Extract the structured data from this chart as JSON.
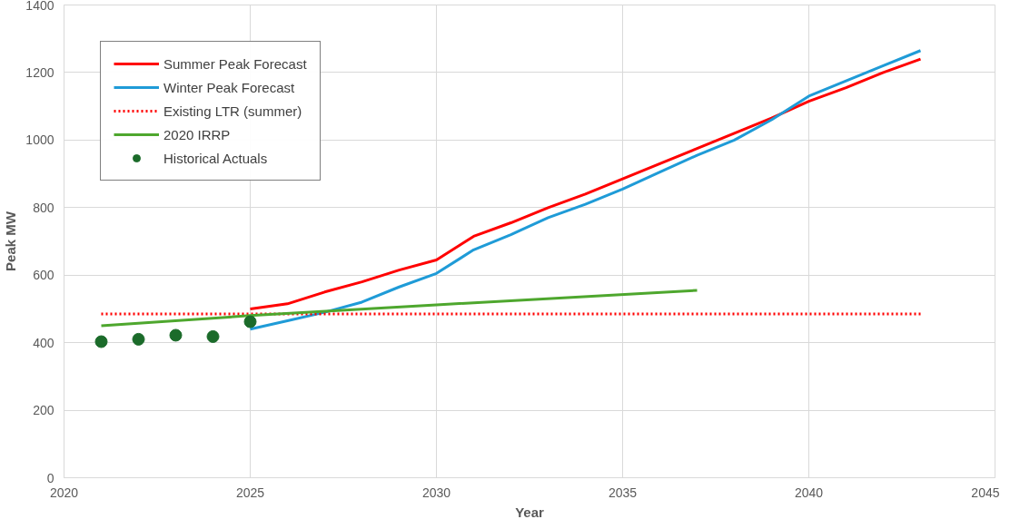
{
  "chart_data": {
    "type": "line",
    "xlabel": "Year",
    "ylabel": "Peak MW",
    "xlim": [
      2020,
      2045
    ],
    "xticks": [
      2020,
      2025,
      2030,
      2035,
      2040,
      2045
    ],
    "ylim": [
      0,
      1400
    ],
    "yticks": [
      0,
      200,
      400,
      600,
      800,
      1000,
      1200,
      1400
    ],
    "grid": true,
    "legend": "top left",
    "series": [
      {
        "name": "Summer Peak Forecast",
        "color": "#ff0000",
        "line_style": "solid",
        "x": [
          2025,
          2026,
          2027,
          2028,
          2029,
          2030,
          2031,
          2032,
          2033,
          2034,
          2035,
          2036,
          2037,
          2038,
          2039,
          2040,
          2041,
          2042,
          2043
        ],
        "values": [
          500,
          515,
          550,
          580,
          615,
          645,
          715,
          755,
          800,
          840,
          885,
          930,
          975,
          1020,
          1065,
          1115,
          1155,
          1200,
          1240
        ]
      },
      {
        "name": "Winter Peak Forecast",
        "color": "#1f9bd7",
        "line_style": "solid",
        "x": [
          2025,
          2026,
          2027,
          2028,
          2029,
          2030,
          2031,
          2032,
          2033,
          2034,
          2035,
          2036,
          2037,
          2038,
          2039,
          2040,
          2041,
          2042,
          2043
        ],
        "values": [
          440,
          465,
          490,
          520,
          565,
          605,
          675,
          720,
          770,
          810,
          855,
          905,
          955,
          1000,
          1060,
          1130,
          1175,
          1220,
          1265
        ]
      },
      {
        "name": "Existing LTR (summer)",
        "color": "#ff0000",
        "line_style": "dotted",
        "x": [
          2021,
          2043
        ],
        "values": [
          485,
          485
        ]
      },
      {
        "name": "2020 IRRP",
        "color": "#4ea72e",
        "line_style": "solid",
        "x": [
          2021,
          2025,
          2030,
          2037
        ],
        "values": [
          450,
          480,
          512,
          555
        ]
      },
      {
        "name": "Historical Actuals",
        "type": "scatter",
        "marker": "circle",
        "color": "#1b6b2a",
        "x": [
          2021,
          2022,
          2023,
          2024,
          2025
        ],
        "values": [
          403,
          410,
          422,
          418,
          462
        ]
      }
    ]
  }
}
